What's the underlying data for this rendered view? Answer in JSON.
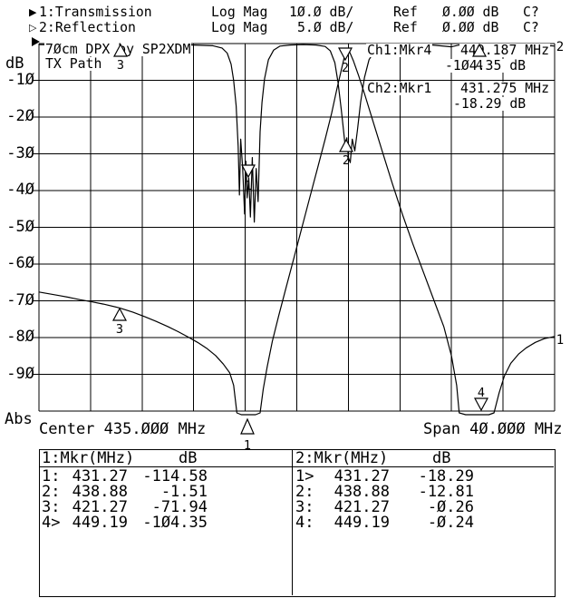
{
  "screen": {
    "channels": [
      {
        "label": "1:Transmission",
        "format": "Log Mag",
        "scale": "10.0 dB/",
        "ref_label": "Ref",
        "ref_value": "0.00 dB",
        "status": "C?"
      },
      {
        "label": "2:Reflection",
        "format": "Log Mag",
        "scale": "5.0 dB/",
        "ref_label": "Ref",
        "ref_value": "0.00 dB",
        "status": "C?"
      }
    ],
    "plot": {
      "title_line1": "70cm DPX by SP2XDM",
      "title_line2": "TX Path",
      "y_axis_unit": "dB",
      "y_axis_bottom_label": "Abs",
      "y_tick_labels": [
        "-10",
        "-20",
        "-30",
        "-40",
        "-50",
        "-60",
        "-70",
        "-80",
        "-90"
      ],
      "x_left_label": "Center 435.000 MHz",
      "x_right_label": "Span 40.000 MHz",
      "readout": {
        "ch1_label": "Ch1:Mkr4",
        "ch1_freq": "449.187 MHz",
        "ch1_value": "-104.35 dB",
        "ch2_label": "Ch2:Mkr1",
        "ch2_freq": "431.275 MHz",
        "ch2_value": "-18.29 dB"
      },
      "trace_end_labels": {
        "trace1": "1",
        "trace2": "2"
      }
    },
    "marker_tables": [
      {
        "header_ch": "1:Mkr",
        "header_freq": "(MHz)",
        "header_val": "dB",
        "rows": [
          [
            "1:",
            "431.27",
            "-114.58"
          ],
          [
            "2:",
            "438.88",
            "-1.51"
          ],
          [
            "3:",
            "421.27",
            "-71.94"
          ],
          [
            "4>",
            "449.19",
            "-104.35"
          ]
        ]
      },
      {
        "header_ch": "2:Mkr",
        "header_freq": "(MHz)",
        "header_val": "dB",
        "rows": [
          [
            "1>",
            "431.27",
            "-18.29"
          ],
          [
            "2:",
            "438.88",
            "-12.81"
          ],
          [
            "3:",
            "421.27",
            "-0.26"
          ],
          [
            "4:",
            "449.19",
            "-0.24"
          ]
        ]
      }
    ]
  },
  "chart_data": {
    "type": "line",
    "title": "70cm DPX by SP2XDM TX Path",
    "x_axis": {
      "label": "MHz",
      "center_mhz": 435.0,
      "span_mhz": 40.0,
      "start_mhz": 415.0,
      "stop_mhz": 455.0,
      "divisions": 10
    },
    "y_axis": {
      "unit": "dB",
      "reference_db": 0.0,
      "ch1_db_per_div": 10.0,
      "ch2_db_per_div": 5.0,
      "divisions": 10,
      "bottom_label": "Abs",
      "tick_labels": [
        -10,
        -20,
        -30,
        -40,
        -50,
        -60,
        -70,
        -80,
        -90
      ]
    },
    "legend": [
      "1:Transmission (10.0 dB/div)",
      "2:Reflection (5.0 dB/div)"
    ],
    "markers": [
      {
        "n": "1",
        "mhz": 431.27,
        "ch1_db": -114.58,
        "ch2_db": -18.29
      },
      {
        "n": "2",
        "mhz": 438.88,
        "ch1_db": -1.51,
        "ch2_db": -12.81
      },
      {
        "n": "3",
        "mhz": 421.27,
        "ch1_db": -71.94,
        "ch2_db": -0.26
      },
      {
        "n": "4",
        "mhz": 449.19,
        "ch1_db": -104.35,
        "ch2_db": -0.24
      }
    ],
    "series": [
      {
        "name": "1:Transmission",
        "db_per_div": 10,
        "points": [
          [
            415,
            -67.6
          ],
          [
            415.8,
            -68.1
          ],
          [
            416.6,
            -68.6
          ],
          [
            417.4,
            -69.1
          ],
          [
            418.2,
            -69.7
          ],
          [
            419,
            -70.2
          ],
          [
            420,
            -70.9
          ],
          [
            421.27,
            -71.94
          ],
          [
            422.3,
            -73.1
          ],
          [
            423.2,
            -74.3
          ],
          [
            424.1,
            -75.6
          ],
          [
            425,
            -77
          ],
          [
            425.8,
            -78.4
          ],
          [
            426.6,
            -79.9
          ],
          [
            427.3,
            -81.3
          ],
          [
            428,
            -82.9
          ],
          [
            428.7,
            -84.9
          ],
          [
            429.3,
            -87.2
          ],
          [
            429.8,
            -89.6
          ],
          [
            430.1,
            -93
          ],
          [
            430.35,
            -100.5
          ],
          [
            430.7,
            -110
          ],
          [
            431.27,
            -114.58
          ],
          [
            431.8,
            -112
          ],
          [
            432.15,
            -100.5
          ],
          [
            432.4,
            -94
          ],
          [
            432.7,
            -88
          ],
          [
            433.1,
            -81
          ],
          [
            433.6,
            -74
          ],
          [
            434.2,
            -66
          ],
          [
            434.8,
            -58
          ],
          [
            435.4,
            -50
          ],
          [
            436,
            -42
          ],
          [
            436.6,
            -34
          ],
          [
            437.2,
            -26
          ],
          [
            437.7,
            -19
          ],
          [
            438.1,
            -12.5
          ],
          [
            438.5,
            -6.5
          ],
          [
            438.75,
            -2.8
          ],
          [
            438.88,
            -1.51
          ],
          [
            439.1,
            -2.3
          ],
          [
            439.4,
            -4.8
          ],
          [
            439.8,
            -8.8
          ],
          [
            440.3,
            -14.2
          ],
          [
            440.9,
            -21
          ],
          [
            441.6,
            -29
          ],
          [
            442.4,
            -38
          ],
          [
            443.2,
            -46.5
          ],
          [
            444,
            -54.5
          ],
          [
            444.8,
            -62
          ],
          [
            445.6,
            -69.5
          ],
          [
            446.4,
            -77
          ],
          [
            447,
            -85
          ],
          [
            447.4,
            -93
          ],
          [
            447.6,
            -100.5
          ],
          [
            448.1,
            -106
          ],
          [
            448.7,
            -108
          ],
          [
            449.19,
            -104.35
          ],
          [
            449.9,
            -106
          ],
          [
            450.3,
            -100.5
          ],
          [
            450.7,
            -95
          ],
          [
            451.1,
            -90.5
          ],
          [
            451.6,
            -87
          ],
          [
            452.2,
            -84.5
          ],
          [
            452.8,
            -82.8
          ],
          [
            453.5,
            -81.3
          ],
          [
            454.2,
            -80.3
          ],
          [
            455,
            -79.7
          ]
        ]
      },
      {
        "name": "2:Reflection",
        "db_per_div": 5,
        "points": [
          [
            415,
            -0.15
          ],
          [
            417,
            -0.2
          ],
          [
            419,
            -0.15
          ],
          [
            421.27,
            -0.26
          ],
          [
            423,
            -0.2
          ],
          [
            425,
            -0.15
          ],
          [
            427,
            -0.2
          ],
          [
            428.5,
            -0.3
          ],
          [
            429.2,
            -0.6
          ],
          [
            429.6,
            -1.3
          ],
          [
            429.9,
            -2.8
          ],
          [
            430.1,
            -5
          ],
          [
            430.3,
            -8.5
          ],
          [
            430.45,
            -14
          ],
          [
            430.55,
            -20.6
          ],
          [
            430.65,
            -13
          ],
          [
            430.8,
            -17
          ],
          [
            430.95,
            -23.2
          ],
          [
            431.05,
            -16
          ],
          [
            431.15,
            -21
          ],
          [
            431.275,
            -18.29
          ],
          [
            431.4,
            -23.6
          ],
          [
            431.55,
            -15.5
          ],
          [
            431.7,
            -24.3
          ],
          [
            431.85,
            -17
          ],
          [
            432,
            -21.5
          ],
          [
            432.15,
            -12
          ],
          [
            432.3,
            -8
          ],
          [
            432.5,
            -4.8
          ],
          [
            432.8,
            -2.2
          ],
          [
            433.2,
            -0.9
          ],
          [
            433.7,
            -0.35
          ],
          [
            434.5,
            -0.2
          ],
          [
            435.5,
            -0.15
          ],
          [
            436.5,
            -0.2
          ],
          [
            437.2,
            -0.4
          ],
          [
            437.6,
            -1
          ],
          [
            437.95,
            -2.6
          ],
          [
            438.2,
            -5.3
          ],
          [
            438.45,
            -9
          ],
          [
            438.65,
            -12.2
          ],
          [
            438.75,
            -13.9
          ],
          [
            438.88,
            -12.81
          ],
          [
            439,
            -15.5
          ],
          [
            439.15,
            -16.2
          ],
          [
            439.3,
            -13
          ],
          [
            439.5,
            -14.6
          ],
          [
            439.7,
            -11.8
          ],
          [
            439.95,
            -8
          ],
          [
            440.25,
            -4.6
          ],
          [
            440.6,
            -2.2
          ],
          [
            441.1,
            -0.8
          ],
          [
            441.7,
            -0.3
          ],
          [
            442.5,
            -0.18
          ],
          [
            444,
            -0.15
          ],
          [
            445.5,
            -0.2
          ],
          [
            447,
            -0.45
          ],
          [
            447.6,
            -0.2
          ],
          [
            448.3,
            -0.35
          ],
          [
            448.8,
            -0.5
          ],
          [
            449.19,
            -0.24
          ],
          [
            449.8,
            -0.6
          ],
          [
            450.3,
            -0.25
          ],
          [
            450.9,
            -0.55
          ],
          [
            451.5,
            -0.2
          ],
          [
            452.2,
            -0.5
          ],
          [
            452.9,
            -0.6
          ],
          [
            453.5,
            -0.25
          ],
          [
            454.1,
            -0.55
          ],
          [
            454.7,
            -0.3
          ],
          [
            455,
            -0.35
          ]
        ]
      }
    ]
  }
}
